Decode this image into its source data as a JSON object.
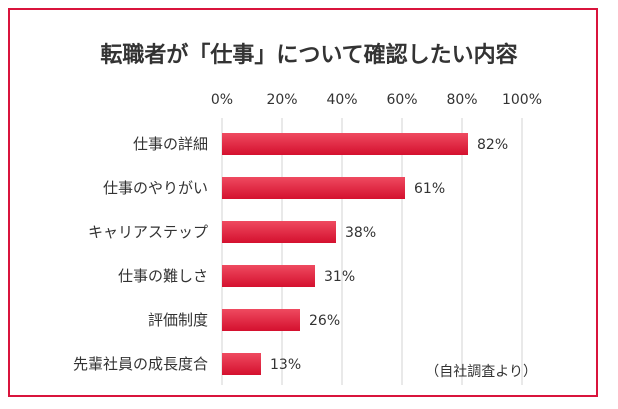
{
  "chart_data": {
    "type": "bar",
    "orientation": "horizontal",
    "title": "転職者が「仕事」について確認したい内容",
    "categories": [
      "仕事の詳細",
      "仕事のやりがい",
      "キャリアステップ",
      "仕事の難しさ",
      "評価制度",
      "先輩社員の成長度合"
    ],
    "values": [
      82,
      61,
      38,
      31,
      26,
      13
    ],
    "value_labels": [
      "82%",
      "61%",
      "38%",
      "31%",
      "26%",
      "13%"
    ],
    "xlim": [
      0,
      100
    ],
    "x_ticks": [
      0,
      20,
      40,
      60,
      80,
      100
    ],
    "x_tick_labels": [
      "0%",
      "20%",
      "40%",
      "60%",
      "80%",
      "100%"
    ],
    "axis_position": "top",
    "grid": true,
    "legend": "none",
    "note": "（自社調査より）",
    "colors": {
      "border": "#d9143c",
      "bar_top": "#ef4a60",
      "bar_bottom": "#d4102e",
      "grid": "#d3d3d3",
      "text": "#333333"
    }
  }
}
